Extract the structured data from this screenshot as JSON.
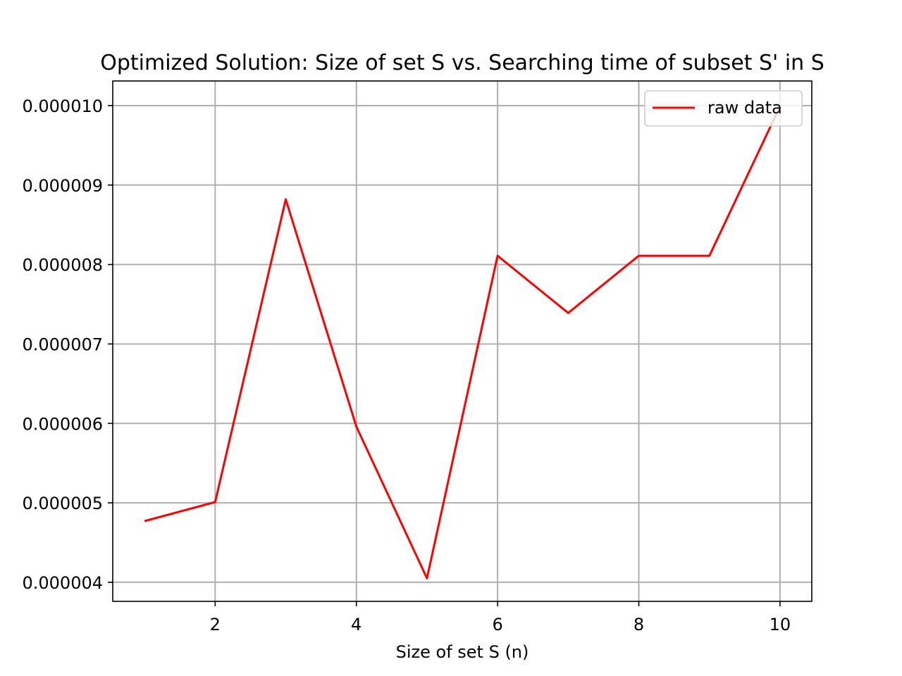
{
  "chart_data": {
    "type": "line",
    "title": "Optimized Solution: Size of set S vs. Searching time of subset S' in S",
    "xlabel": "Size of set S (n)",
    "ylabel": "",
    "x": [
      1,
      2,
      3,
      4,
      5,
      6,
      7,
      8,
      9,
      10
    ],
    "series": [
      {
        "name": "raw data",
        "color": "#ff0000",
        "values": [
          4.77e-06,
          5.01e-06,
          8.82e-06,
          5.96e-06,
          4.05e-06,
          8.11e-06,
          7.39e-06,
          8.11e-06,
          8.11e-06,
          9.99e-06
        ]
      }
    ],
    "xlim": [
      0.55,
      10.45
    ],
    "ylim": [
      3.76e-06,
      1.031e-05
    ],
    "xticks": [
      2,
      4,
      6,
      8,
      10
    ],
    "xtick_labels": [
      "2",
      "4",
      "6",
      "8",
      "10"
    ],
    "yticks": [
      4e-06,
      5e-06,
      6e-06,
      7e-06,
      8e-06,
      9e-06,
      1e-05
    ],
    "ytick_labels": [
      "0.000004",
      "0.000005",
      "0.000006",
      "0.000007",
      "0.000008",
      "0.000009",
      "0.000010"
    ],
    "grid": true,
    "legend_position": "top-right"
  }
}
